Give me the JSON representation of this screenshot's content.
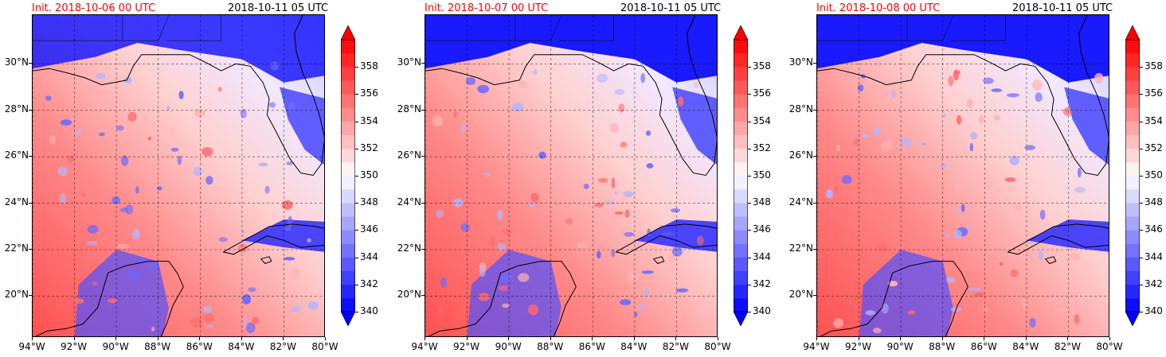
{
  "panels": [
    {
      "init": "Init. 2018-10-06 00 UTC",
      "valid": "2018-10-11 05 UTC"
    },
    {
      "init": "Init. 2018-10-07 00 UTC",
      "valid": "2018-10-11 05 UTC"
    },
    {
      "init": "Init. 2018-10-08 00 UTC",
      "valid": "2018-10-11 05 UTC"
    }
  ],
  "map": {
    "lat_labels": [
      "30°N",
      "28°N",
      "26°N",
      "24°N",
      "22°N",
      "20°N"
    ],
    "lat_values": [
      30,
      28,
      26,
      24,
      22,
      20
    ],
    "lon_labels": [
      "94°W",
      "92°W",
      "90°W",
      "88°W",
      "86°W",
      "84°W",
      "82°W",
      "80°W"
    ],
    "lon_values": [
      -94,
      -92,
      -90,
      -88,
      -86,
      -84,
      -82,
      -80
    ],
    "extent": {
      "lon_min": -94,
      "lon_max": -80,
      "lat_min": 18.2,
      "lat_max": 32.1
    }
  },
  "colorbar": {
    "labels": [
      "358",
      "356",
      "354",
      "352",
      "350",
      "348",
      "346",
      "344",
      "342",
      "340"
    ],
    "values": [
      358,
      356,
      354,
      352,
      350,
      348,
      346,
      344,
      342,
      340
    ],
    "min": 340,
    "max": 360,
    "colors": {
      "low": "#0000ff",
      "mid": "#ffffff",
      "high": "#ff0000"
    }
  }
}
